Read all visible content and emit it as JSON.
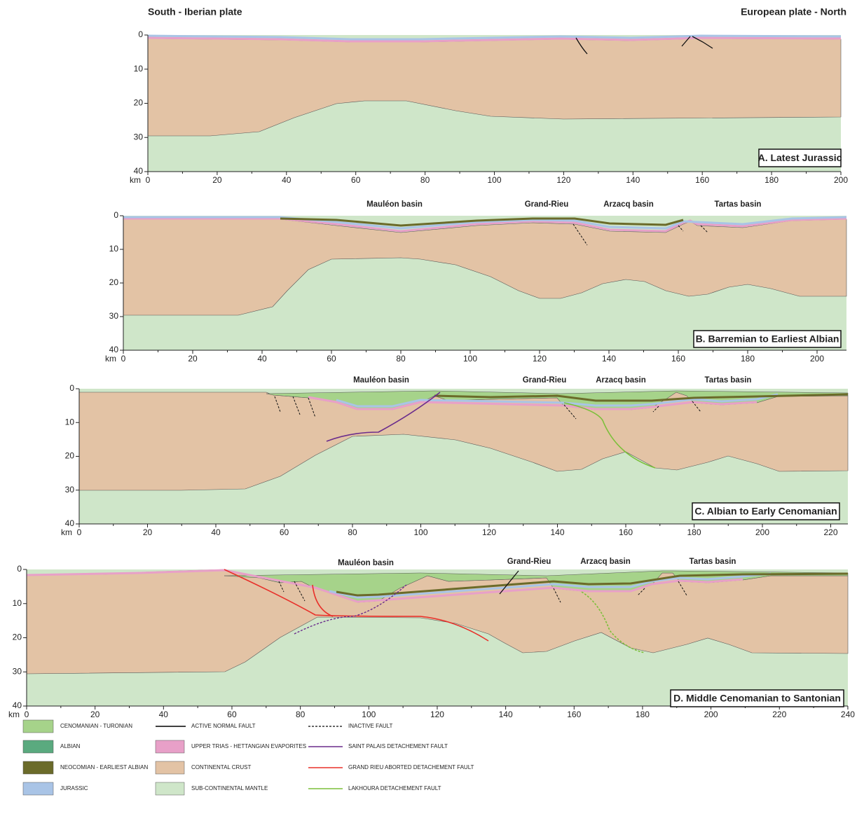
{
  "header": {
    "left": "South - Iberian plate",
    "right": "European plate - North"
  },
  "panels": [
    {
      "label": "A. Latest Jurassic",
      "x_unit": "km",
      "xticks": [
        0,
        20,
        40,
        60,
        80,
        100,
        120,
        140,
        160,
        180,
        200
      ],
      "yticks": [
        0,
        10,
        20,
        30,
        40
      ],
      "basins": []
    },
    {
      "label": "B. Barremian to Earliest Albian",
      "x_unit": "km",
      "xticks": [
        0,
        20,
        40,
        60,
        80,
        100,
        120,
        140,
        160,
        180,
        200
      ],
      "yticks": [
        0,
        10,
        20,
        30,
        40
      ],
      "basins": [
        "Mauléon basin",
        "Grand-Rieu",
        "Arzacq basin",
        "Tartas basin"
      ]
    },
    {
      "label": "C. Albian to Early Cenomanian",
      "x_unit": "km",
      "xticks": [
        0,
        20,
        40,
        60,
        80,
        100,
        120,
        140,
        160,
        180,
        200,
        220
      ],
      "yticks": [
        0,
        10,
        20,
        30,
        40
      ],
      "basins": [
        "Mauléon basin",
        "Grand-Rieu",
        "Arzacq basin",
        "Tartas basin"
      ]
    },
    {
      "label": "D. Middle Cenomanian to Santonian",
      "x_unit": "km",
      "xticks": [
        0,
        20,
        40,
        60,
        80,
        100,
        120,
        140,
        160,
        180,
        200,
        220,
        240
      ],
      "yticks": [
        0,
        10,
        20,
        30,
        40
      ],
      "basins": [
        "Mauléon basin",
        "Grand-Rieu",
        "Arzacq basin",
        "Tartas basin"
      ]
    }
  ],
  "legend": [
    {
      "label": "CENOMANIAN - TURONIAN",
      "color": "#a6d38a"
    },
    {
      "label": "ALBIAN",
      "color": "#5aaa7f"
    },
    {
      "label": "NEOCOMIAN - EARLIEST ALBIAN",
      "color": "#6b6b2a"
    },
    {
      "label": "JURASSIC",
      "color": "#a9c4e6"
    },
    {
      "label": "ACTIVE NORMAL FAULT",
      "color": "#000000"
    },
    {
      "label": "UPPER TRIAS - HETTANGIAN EVAPORITES",
      "color": "#e8a0c8"
    },
    {
      "label": "CONTINENTAL CRUST",
      "color": "#e3c3a5"
    },
    {
      "label": "SUB-CONTINENTAL MANTLE",
      "color": "#cfe6c9"
    },
    {
      "label": "INACTIVE FAULT",
      "color": "#333333"
    },
    {
      "label": "SAINT PALAIS DETACHEMENT FAULT",
      "color": "#6a2c8c"
    },
    {
      "label": "GRAND RIEU ABORTED DETACHEMENT FAULT",
      "color": "#e8302a"
    },
    {
      "label": "LAKHOURA DETACHEMENT FAULT",
      "color": "#7cbf3a"
    }
  ]
}
